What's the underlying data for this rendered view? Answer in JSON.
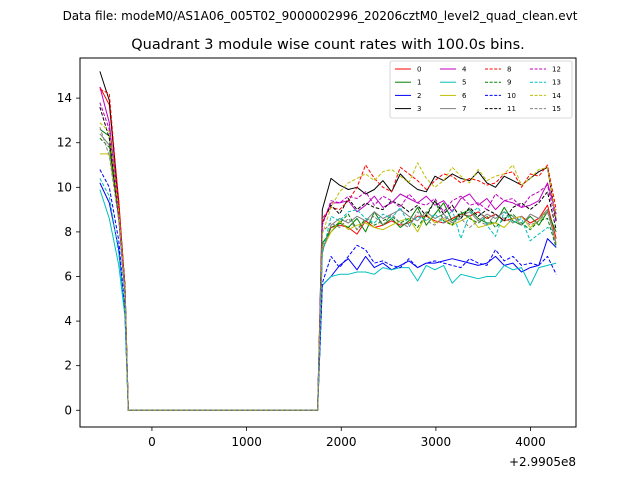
{
  "chart_data": {
    "type": "line",
    "suptitle": "Data file: modeM0/AS1A06_005T02_9000002996_20206cztM0_level2_quad_clean.evt",
    "title": "Quadrant 3 module wise count rates with 100.0s bins.",
    "xlabel": "",
    "ylabel": "",
    "x_offset_label": "+2.9905e8",
    "xlim": [
      -760,
      4480
    ],
    "ylim": [
      -0.75,
      15.8
    ],
    "x_ticks": [
      0,
      1000,
      2000,
      3000,
      4000
    ],
    "x_tick_labels": [
      "0",
      "1000",
      "2000",
      "3000",
      "4000"
    ],
    "y_ticks": [
      0,
      2,
      4,
      6,
      8,
      10,
      12,
      14
    ],
    "y_tick_labels": [
      "0",
      "2",
      "4",
      "6",
      "8",
      "10",
      "12",
      "14"
    ],
    "legend_position": "top-right",
    "series": [
      {
        "name": "0",
        "color": "#ff0000",
        "dash": "solid",
        "start_values": [
          14.5,
          13.7,
          9.4,
          5.5,
          0.0
        ],
        "end_values": [
          7.2,
          8.2,
          8.3,
          8.2,
          7.9,
          8.5,
          8.2,
          8.3,
          8.5,
          8.3,
          8.4,
          8.7,
          8.7,
          8.5,
          8.4,
          8.6,
          8.8,
          8.7,
          8.9,
          8.6,
          8.8,
          8.5,
          8.6,
          8.7,
          8.4,
          8.6,
          9.2,
          7.7
        ]
      },
      {
        "name": "1",
        "color": "#008000",
        "dash": "solid",
        "start_values": [
          12.6,
          12.3,
          8.7,
          5.2,
          0.0
        ],
        "end_values": [
          7.5,
          8.0,
          8.4,
          8.2,
          8.6,
          8.0,
          8.9,
          8.3,
          8.6,
          8.2,
          8.5,
          9.1,
          8.3,
          8.8,
          9.3,
          8.5,
          8.8,
          9.0,
          8.6,
          8.4,
          8.4,
          9.1,
          8.5,
          8.3,
          8.7,
          8.3,
          8.9,
          8.0
        ]
      },
      {
        "name": "2",
        "color": "#0000ff",
        "dash": "solid",
        "start_values": [
          10.2,
          9.3,
          7.2,
          4.3,
          0.0
        ],
        "end_values": [
          5.6,
          6.0,
          6.5,
          6.8,
          6.3,
          6.9,
          6.4,
          6.6,
          6.3,
          6.5,
          6.7,
          6.4,
          6.6,
          6.6,
          6.7,
          6.8,
          6.7,
          6.6,
          6.5,
          6.6,
          6.9,
          6.5,
          6.6,
          6.2,
          6.4,
          6.5,
          7.7,
          7.3
        ]
      },
      {
        "name": "3",
        "color": "#000000",
        "dash": "solid",
        "start_values": [
          15.2,
          13.9,
          9.1,
          5.6,
          0.0
        ],
        "end_values": [
          9.0,
          10.4,
          10.1,
          9.9,
          10.0,
          9.7,
          9.9,
          10.3,
          9.8,
          10.6,
          10.2,
          9.9,
          9.8,
          10.5,
          10.3,
          10.6,
          10.4,
          10.3,
          10.7,
          10.2,
          10.0,
          10.5,
          10.3,
          10.1,
          10.4,
          10.7,
          10.9,
          8.5
        ]
      },
      {
        "name": "4",
        "color": "#bf00bf",
        "dash": "solid",
        "start_values": [
          14.5,
          12.9,
          8.9,
          5.4,
          0.0
        ],
        "end_values": [
          8.4,
          9.3,
          9.3,
          9.4,
          8.9,
          9.2,
          9.6,
          9.1,
          9.3,
          9.7,
          9.5,
          9.3,
          9.6,
          9.2,
          9.4,
          8.9,
          9.5,
          9.7,
          9.2,
          9.5,
          9.0,
          9.4,
          9.3,
          9.1,
          9.2,
          9.4,
          10.2,
          8.8
        ]
      },
      {
        "name": "5",
        "color": "#00bfbf",
        "dash": "solid",
        "start_values": [
          9.9,
          8.6,
          6.5,
          4.2,
          0.0
        ],
        "end_values": [
          5.6,
          6.0,
          6.1,
          6.1,
          6.2,
          6.2,
          6.1,
          6.4,
          6.3,
          6.4,
          6.4,
          5.8,
          6.5,
          6.3,
          6.5,
          5.7,
          6.1,
          6.0,
          5.9,
          6.0,
          6.0,
          6.5,
          6.3,
          6.4,
          5.6,
          6.4,
          6.5,
          6.6
        ]
      },
      {
        "name": "6",
        "color": "#bfbf00",
        "dash": "solid",
        "start_values": [
          11.5,
          11.5,
          8.7,
          5.3,
          0.0
        ],
        "end_values": [
          7.2,
          8.0,
          8.5,
          8.1,
          8.3,
          8.4,
          8.2,
          8.1,
          8.3,
          8.5,
          8.6,
          8.0,
          8.8,
          8.4,
          8.6,
          8.3,
          8.5,
          8.7,
          8.2,
          8.3,
          8.4,
          8.2,
          8.6,
          8.7,
          8.2,
          8.5,
          9.0,
          7.5
        ]
      },
      {
        "name": "7",
        "color": "#808080",
        "dash": "solid",
        "start_values": [
          12.4,
          11.9,
          8.6,
          5.2,
          0.0
        ],
        "end_values": [
          7.1,
          8.3,
          8.6,
          8.4,
          8.7,
          8.5,
          8.9,
          8.6,
          8.8,
          9.0,
          8.7,
          8.5,
          8.9,
          8.6,
          8.8,
          8.4,
          8.7,
          8.9,
          8.5,
          8.8,
          8.6,
          8.9,
          8.7,
          8.3,
          8.8,
          8.6,
          9.0,
          7.4
        ]
      },
      {
        "name": "8",
        "color": "#ff0000",
        "dash": "dashed",
        "start_values": [
          14.4,
          14.2,
          9.2,
          5.6,
          0.0
        ],
        "end_values": [
          8.6,
          9.1,
          9.0,
          9.4,
          10.0,
          11.0,
          10.4,
          10.0,
          9.8,
          10.9,
          10.6,
          10.3,
          9.9,
          10.3,
          10.6,
          10.5,
          10.2,
          10.4,
          10.3,
          10.1,
          10.2,
          10.6,
          10.7,
          10.0,
          10.6,
          10.5,
          11.0,
          9.0
        ]
      },
      {
        "name": "9",
        "color": "#008000",
        "dash": "dashed",
        "start_values": [
          12.2,
          11.8,
          8.8,
          5.3,
          0.0
        ],
        "end_values": [
          7.4,
          8.2,
          8.4,
          8.8,
          8.1,
          8.6,
          8.3,
          8.5,
          8.7,
          8.4,
          8.6,
          8.2,
          8.8,
          9.4,
          8.5,
          8.3,
          8.9,
          8.6,
          8.4,
          8.7,
          8.2,
          8.6,
          8.8,
          8.4,
          8.1,
          8.5,
          8.6,
          7.3
        ]
      },
      {
        "name": "10",
        "color": "#0000ff",
        "dash": "dashed",
        "start_values": [
          10.8,
          10.0,
          7.6,
          4.5,
          0.0
        ],
        "end_values": [
          5.7,
          6.9,
          6.4,
          6.9,
          7.4,
          7.2,
          6.6,
          6.7,
          6.5,
          6.4,
          6.8,
          6.4,
          6.6,
          6.7,
          6.6,
          6.5,
          6.4,
          6.8,
          6.6,
          6.5,
          7.2,
          6.7,
          6.9,
          6.5,
          6.6,
          6.5,
          6.9,
          6.1
        ]
      },
      {
        "name": "11",
        "color": "#000000",
        "dash": "dashed",
        "start_values": [
          13.6,
          12.2,
          8.6,
          5.2,
          0.0
        ],
        "end_values": [
          8.4,
          9.2,
          8.8,
          9.5,
          9.0,
          9.3,
          9.1,
          9.0,
          9.4,
          9.2,
          8.9,
          9.2,
          8.7,
          9.4,
          8.8,
          9.2,
          8.6,
          9.1,
          8.7,
          9.0,
          8.8,
          8.5,
          9.1,
          9.3,
          9.0,
          9.3,
          9.8,
          8.1
        ]
      },
      {
        "name": "12",
        "color": "#bf00bf",
        "dash": "dashed",
        "start_values": [
          13.8,
          12.6,
          8.8,
          5.3,
          0.0
        ],
        "end_values": [
          8.3,
          9.4,
          9.3,
          9.6,
          9.5,
          9.8,
          9.2,
          9.6,
          9.4,
          9.1,
          9.7,
          9.3,
          9.2,
          9.5,
          8.9,
          9.4,
          9.6,
          9.2,
          9.3,
          9.0,
          9.7,
          9.4,
          9.5,
          9.1,
          9.6,
          9.8,
          10.1,
          8.4
        ]
      },
      {
        "name": "13",
        "color": "#00bfbf",
        "dash": "dashed",
        "start_values": [
          10.4,
          9.6,
          7.0,
          4.4,
          0.0
        ],
        "end_values": [
          7.0,
          8.7,
          8.5,
          8.9,
          9.0,
          8.6,
          8.4,
          8.8,
          8.6,
          9.1,
          8.3,
          8.7,
          8.5,
          8.8,
          8.4,
          9.0,
          7.7,
          8.8,
          9.1,
          8.3,
          7.8,
          8.9,
          8.4,
          8.6,
          7.6,
          7.9,
          8.2,
          8.0
        ]
      },
      {
        "name": "14",
        "color": "#bfbf00",
        "dash": "dashed",
        "start_values": [
          12.9,
          12.5,
          8.9,
          5.4,
          0.0
        ],
        "end_values": [
          7.9,
          9.1,
          9.8,
          10.2,
          10.4,
          10.6,
          10.3,
          10.7,
          10.8,
          10.5,
          10.2,
          11.1,
          10.4,
          10.0,
          10.3,
          10.9,
          10.5,
          10.2,
          10.8,
          10.3,
          10.5,
          10.6,
          11.0,
          10.1,
          10.4,
          10.8,
          10.9,
          8.6
        ]
      },
      {
        "name": "15",
        "color": "#808080",
        "dash": "dashed",
        "start_values": [
          12.7,
          11.4,
          8.5,
          5.2,
          0.0
        ],
        "end_values": [
          8.0,
          8.4,
          8.2,
          8.6,
          8.1,
          8.5,
          8.7,
          8.3,
          8.8,
          8.4,
          8.2,
          8.9,
          8.5,
          8.3,
          8.7,
          8.4,
          8.6,
          8.2,
          8.5,
          8.3,
          8.8,
          8.6,
          8.4,
          8.7,
          8.3,
          8.5,
          8.9,
          7.5
        ]
      }
    ],
    "series_x": {
      "start_x": [
        -550,
        -450,
        -350,
        -285,
        -250
      ],
      "gap_x": [
        -250,
        1750
      ],
      "end_start_x": 1800,
      "end_step": 91.5,
      "end_count": 28
    }
  }
}
